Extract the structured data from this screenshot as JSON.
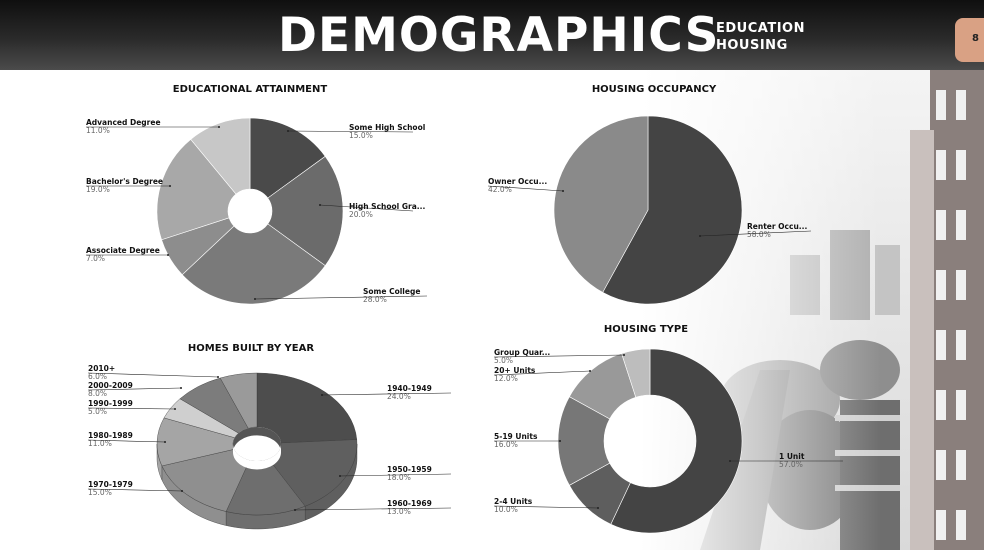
{
  "header": {
    "title": "DEMOGRAPHICS",
    "subtitle_line1": "EDUCATION",
    "subtitle_line2": "HOUSING",
    "page_number": "8",
    "colors": {
      "tab": "#d9a184"
    }
  },
  "chart_data": [
    {
      "type": "pie",
      "style": "donut",
      "title": "EDUCATIONAL ATTAINMENT",
      "slices": [
        {
          "label": "Some High School",
          "value": 15.0,
          "pct_text": "15.0%",
          "color": "#4a4a4a"
        },
        {
          "label": "High School Gra...",
          "value": 20.0,
          "pct_text": "20.0%",
          "color": "#6b6b6b"
        },
        {
          "label": "Some College",
          "value": 28.0,
          "pct_text": "28.0%",
          "color": "#7a7a7a"
        },
        {
          "label": "Associate Degree",
          "value": 7.0,
          "pct_text": "7.0%",
          "color": "#8d8d8d"
        },
        {
          "label": "Bachelor's Degree",
          "value": 19.0,
          "pct_text": "19.0%",
          "color": "#a8a8a8"
        },
        {
          "label": "Advanced Degree",
          "value": 11.0,
          "pct_text": "11.0%",
          "color": "#c7c7c7"
        }
      ]
    },
    {
      "type": "pie",
      "title": "HOUSING OCCUPANCY",
      "slices": [
        {
          "label": "Renter Occu...",
          "value": 58.0,
          "pct_text": "58.0%",
          "color": "#444444"
        },
        {
          "label": "Owner Occu...",
          "value": 42.0,
          "pct_text": "42.0%",
          "color": "#8a8a8a"
        }
      ]
    },
    {
      "type": "pie",
      "style": "3d-donut",
      "title": "HOMES BUILT BY YEAR",
      "slices": [
        {
          "label": "1940-1949",
          "value": 24.0,
          "pct_text": "24.0%",
          "color": "#4d4d4d"
        },
        {
          "label": "1950-1959",
          "value": 18.0,
          "pct_text": "18.0%",
          "color": "#5f5f5f"
        },
        {
          "label": "1960-1969",
          "value": 13.0,
          "pct_text": "13.0%",
          "color": "#6e6e6e"
        },
        {
          "label": "1970-1979",
          "value": 15.0,
          "pct_text": "15.0%",
          "color": "#8f8f8f"
        },
        {
          "label": "1980-1989",
          "value": 11.0,
          "pct_text": "11.0%",
          "color": "#a5a5a5"
        },
        {
          "label": "1990-1999",
          "value": 5.0,
          "pct_text": "5.0%",
          "color": "#cfcfcf"
        },
        {
          "label": "2000-2009",
          "value": 8.0,
          "pct_text": "8.0%",
          "color": "#7c7c7c"
        },
        {
          "label": "2010+",
          "value": 6.0,
          "pct_text": "6.0%",
          "color": "#9a9a9a"
        }
      ]
    },
    {
      "type": "pie",
      "style": "donut",
      "title": "HOUSING TYPE",
      "slices": [
        {
          "label": "1 Unit",
          "value": 57.0,
          "pct_text": "57.0%",
          "color": "#444444"
        },
        {
          "label": "2-4 Units",
          "value": 10.0,
          "pct_text": "10.0%",
          "color": "#5e5e5e"
        },
        {
          "label": "5-19 Units",
          "value": 16.0,
          "pct_text": "16.0%",
          "color": "#777777"
        },
        {
          "label": "20+ Units",
          "value": 12.0,
          "pct_text": "12.0%",
          "color": "#999999"
        },
        {
          "label": "Group Quar...",
          "value": 5.0,
          "pct_text": "5.0%",
          "color": "#bdbdbd"
        }
      ]
    }
  ]
}
